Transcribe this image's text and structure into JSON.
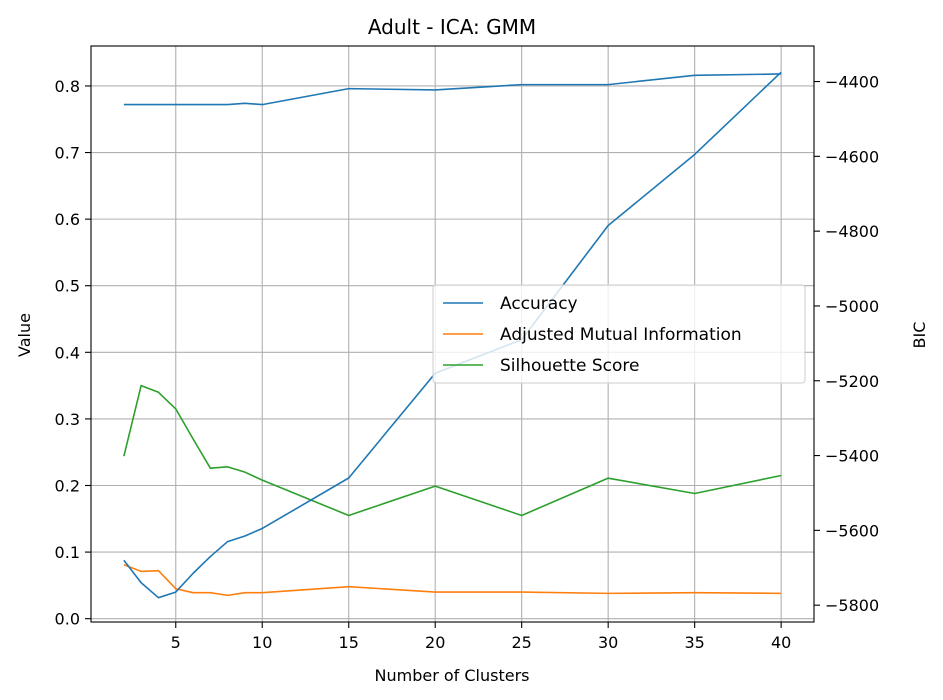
{
  "chart_data": {
    "type": "line",
    "title": "Adult - ICA: GMM",
    "xlabel": "Number of Clusters",
    "ylabel": "Value",
    "y2label": "BIC",
    "xlim": [
      0.1,
      41.9
    ],
    "ylim": [
      -0.005,
      0.86
    ],
    "y2lim": [
      -5845,
      -4305
    ],
    "xticks": [
      5,
      10,
      15,
      20,
      25,
      30,
      35,
      40
    ],
    "yticks": [
      0.0,
      0.1,
      0.2,
      0.3,
      0.4,
      0.5,
      0.6,
      0.7,
      0.8
    ],
    "ytick_labels": [
      "0.0",
      "0.1",
      "0.2",
      "0.3",
      "0.4",
      "0.5",
      "0.6",
      "0.7",
      "0.8"
    ],
    "y2ticks": [
      -5800,
      -5600,
      -5400,
      -5200,
      -5000,
      -4800,
      -4600,
      -4400
    ],
    "y2tick_labels": [
      "−5800",
      "−5600",
      "−5400",
      "−5200",
      "−5000",
      "−4800",
      "−4600",
      "−4400"
    ],
    "grid": true,
    "legend_position": "center-right",
    "series": [
      {
        "name": "Accuracy",
        "color": "#1f77b4",
        "axis": "left",
        "x": [
          2,
          3,
          4,
          5,
          6,
          7,
          8,
          9,
          10,
          15,
          20,
          25,
          30,
          35,
          40
        ],
        "values": [
          0.772,
          0.772,
          0.772,
          0.772,
          0.772,
          0.772,
          0.772,
          0.774,
          0.772,
          0.796,
          0.794,
          0.802,
          0.802,
          0.816,
          0.818
        ]
      },
      {
        "name": "Adjusted Mutual Information",
        "color": "#ff7f0e",
        "axis": "left",
        "x": [
          2,
          3,
          4,
          5,
          6,
          7,
          8,
          9,
          10,
          15,
          20,
          25,
          30,
          35,
          40
        ],
        "values": [
          0.081,
          0.071,
          0.072,
          0.045,
          0.039,
          0.039,
          0.035,
          0.039,
          0.039,
          0.048,
          0.04,
          0.04,
          0.038,
          0.039,
          0.038
        ]
      },
      {
        "name": "Silhouette Score",
        "color": "#2ca02c",
        "axis": "left",
        "x": [
          2,
          3,
          4,
          5,
          6,
          7,
          8,
          9,
          10,
          15,
          20,
          25,
          30,
          35,
          40
        ],
        "values": [
          0.244,
          0.35,
          0.34,
          0.315,
          0.27,
          0.226,
          0.228,
          0.22,
          0.208,
          0.155,
          0.199,
          0.155,
          0.211,
          0.188,
          0.215
        ]
      },
      {
        "name": "BIC",
        "color": "#1f77b4",
        "axis": "right",
        "x": [
          2,
          3,
          4,
          5,
          6,
          7,
          8,
          9,
          10,
          15,
          20,
          25,
          30,
          35,
          40
        ],
        "values": [
          -5680,
          -5740,
          -5780,
          -5765,
          -5715,
          -5670,
          -5630,
          -5615,
          -5595,
          -5460,
          -5180,
          -5090,
          -4785,
          -4595,
          -4375
        ]
      }
    ],
    "legend": [
      "Accuracy",
      "Adjusted Mutual Information",
      "Silhouette Score"
    ]
  }
}
